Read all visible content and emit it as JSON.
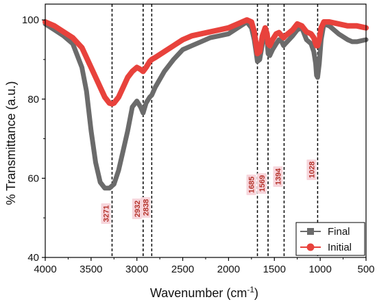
{
  "chart_data": {
    "type": "line",
    "title": "",
    "xlabel": "Wavenumber (cm",
    "xlabel_sup": "-1",
    "xlabel_close": ")",
    "ylabel": "% Transmittance (a.u.)",
    "xlim": [
      4000,
      500
    ],
    "ylim": [
      40,
      104
    ],
    "x_reversed": true,
    "grid": false,
    "legend_position": "bottom-right",
    "x_ticks": [
      4000,
      3500,
      3000,
      2500,
      2000,
      1500,
      1000,
      500
    ],
    "y_ticks": [
      40,
      60,
      80,
      100
    ],
    "x_tick_labels": [
      "4000",
      "3500",
      "3000",
      "2500",
      "2000",
      "1500",
      "1000",
      "500"
    ],
    "y_tick_labels": [
      "40",
      "60",
      "80",
      "100"
    ],
    "peak_lines": [
      3271,
      2932,
      2838,
      1685,
      1569,
      1394,
      1028
    ],
    "annotations": [
      {
        "x": 3271,
        "text": "3271"
      },
      {
        "x": 2932,
        "text": "2932"
      },
      {
        "x": 2838,
        "text": "2838"
      },
      {
        "x": 1685,
        "text": "1685"
      },
      {
        "x": 1569,
        "text": "1569"
      },
      {
        "x": 1394,
        "text": "1394"
      },
      {
        "x": 1028,
        "text": "1028"
      }
    ],
    "series": [
      {
        "name": "Final",
        "color": "#6b6b6b",
        "marker": "square",
        "x": [
          4000,
          3900,
          3800,
          3700,
          3600,
          3550,
          3500,
          3450,
          3400,
          3350,
          3300,
          3250,
          3200,
          3150,
          3100,
          3050,
          3000,
          2960,
          2932,
          2900,
          2860,
          2838,
          2800,
          2700,
          2600,
          2500,
          2400,
          2300,
          2200,
          2100,
          2000,
          1900,
          1800,
          1750,
          1720,
          1700,
          1685,
          1660,
          1630,
          1600,
          1580,
          1569,
          1550,
          1520,
          1480,
          1450,
          1420,
          1400,
          1380,
          1300,
          1250,
          1200,
          1150,
          1100,
          1070,
          1050,
          1040,
          1028,
          1010,
          990,
          960,
          900,
          800,
          700,
          650,
          600,
          500
        ],
        "y": [
          99,
          97.5,
          96,
          94,
          88,
          82,
          72,
          64,
          59,
          57.5,
          57.5,
          58.5,
          62,
          67,
          72,
          78,
          79.5,
          78,
          76.5,
          79,
          80.5,
          81,
          83,
          87,
          90,
          92.5,
          93.5,
          94.5,
          95.5,
          96,
          96.5,
          98,
          99.5,
          98,
          95,
          92,
          89.5,
          90,
          94,
          96.5,
          95,
          91.5,
          91,
          92.5,
          94,
          95,
          94.5,
          93.5,
          94,
          96,
          97.5,
          98,
          95,
          94,
          92,
          89,
          86,
          85.5,
          89,
          95,
          99,
          98.5,
          96.5,
          95,
          94.5,
          94.5,
          95
        ]
      },
      {
        "name": "Initial",
        "color": "#e8423c",
        "marker": "circle",
        "x": [
          4000,
          3900,
          3800,
          3700,
          3600,
          3500,
          3400,
          3350,
          3300,
          3271,
          3250,
          3200,
          3150,
          3100,
          3050,
          3000,
          2960,
          2932,
          2900,
          2860,
          2838,
          2800,
          2700,
          2600,
          2500,
          2400,
          2300,
          2200,
          2100,
          2000,
          1900,
          1800,
          1750,
          1720,
          1700,
          1685,
          1660,
          1630,
          1600,
          1580,
          1569,
          1550,
          1520,
          1480,
          1450,
          1420,
          1400,
          1380,
          1300,
          1250,
          1200,
          1150,
          1100,
          1070,
          1050,
          1040,
          1028,
          1010,
          990,
          960,
          900,
          800,
          700,
          600,
          500
        ],
        "y": [
          99.5,
          98.5,
          97,
          95.5,
          93,
          88,
          83,
          80.5,
          79,
          78.8,
          79,
          80.5,
          83,
          85.5,
          87,
          88,
          87.5,
          87,
          88,
          89.5,
          90,
          90.5,
          92,
          93.5,
          95,
          96,
          96.5,
          97,
          97.5,
          98,
          99,
          100,
          99.5,
          97,
          94,
          91.5,
          92,
          96,
          98,
          96.5,
          94,
          93.5,
          95,
          96.5,
          96.8,
          96,
          95.5,
          96,
          97.5,
          99,
          98.5,
          97,
          96.5,
          95.5,
          94,
          93.5,
          93.5,
          95,
          98,
          99.5,
          99.5,
          99,
          98.5,
          98.5,
          98
        ]
      }
    ]
  }
}
